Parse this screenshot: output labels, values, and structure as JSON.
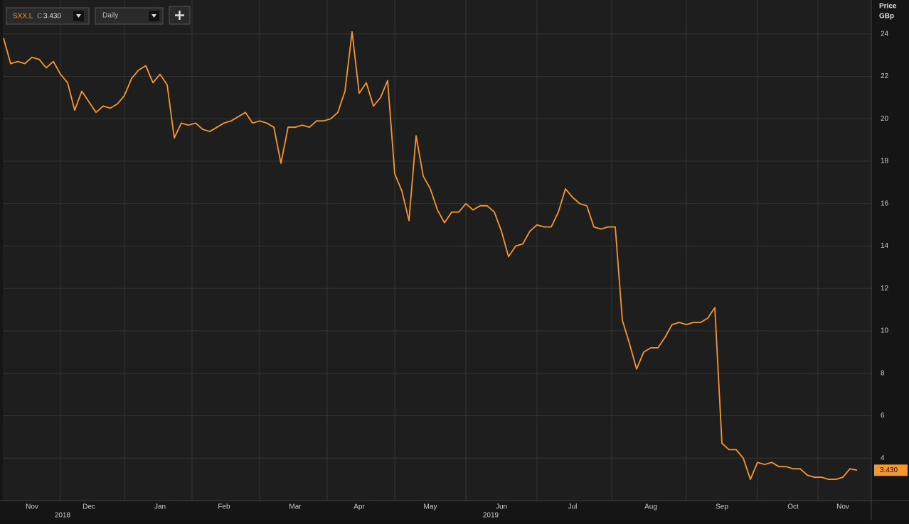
{
  "toolbar": {
    "ticker": "SXX.L",
    "close_prefix": "C",
    "close": "3.430",
    "interval": "Daily"
  },
  "chart_data": {
    "type": "line",
    "axis_title": "Price",
    "axis_unit": "GBp",
    "categories": [
      null,
      null,
      null,
      null,
      "Nov",
      null,
      null,
      null,
      null,
      null,
      null,
      null,
      "Dec",
      null,
      null,
      null,
      null,
      null,
      null,
      null,
      null,
      null,
      "Jan",
      null,
      null,
      null,
      null,
      null,
      null,
      null,
      null,
      "Feb",
      null,
      null,
      null,
      null,
      null,
      null,
      null,
      null,
      null,
      "Mar",
      null,
      null,
      null,
      null,
      null,
      null,
      null,
      null,
      "Apr",
      null,
      null,
      null,
      null,
      null,
      null,
      null,
      null,
      null,
      "May",
      null,
      null,
      null,
      null,
      null,
      null,
      null,
      null,
      null,
      "Jun",
      null,
      null,
      null,
      null,
      null,
      null,
      null,
      null,
      null,
      "Jul",
      null,
      null,
      null,
      null,
      null,
      null,
      null,
      null,
      null,
      null,
      "Aug",
      null,
      null,
      null,
      null,
      null,
      null,
      null,
      null,
      null,
      "Sep",
      null,
      null,
      null,
      null,
      null,
      null,
      null,
      null,
      null,
      "Oct",
      null,
      null,
      null,
      null,
      null,
      null,
      "Nov",
      null,
      null
    ],
    "x_groups": [
      "2018",
      "2019"
    ],
    "series": [
      {
        "name": "SXX.L",
        "color": "#f7962b",
        "values": [
          23.8,
          22.6,
          22.7,
          22.6,
          22.9,
          22.8,
          22.4,
          22.7,
          22.1,
          21.7,
          20.4,
          21.3,
          20.8,
          20.3,
          20.6,
          20.5,
          20.7,
          21.1,
          21.9,
          22.3,
          22.5,
          21.7,
          22.1,
          21.6,
          19.1,
          19.8,
          19.7,
          19.8,
          19.5,
          19.4,
          19.6,
          19.8,
          19.9,
          20.1,
          20.3,
          19.8,
          19.9,
          19.8,
          19.6,
          17.9,
          19.6,
          19.6,
          19.7,
          19.6,
          19.9,
          19.9,
          20.0,
          20.3,
          21.3,
          24.1,
          21.2,
          21.7,
          20.6,
          21.0,
          21.8,
          17.4,
          16.6,
          15.2,
          19.2,
          17.3,
          16.7,
          15.7,
          15.1,
          15.6,
          15.6,
          16.0,
          15.7,
          15.9,
          15.9,
          15.6,
          14.7,
          13.5,
          14.0,
          14.1,
          14.7,
          15.0,
          14.9,
          14.9,
          15.6,
          16.7,
          16.3,
          16.0,
          15.9,
          14.9,
          14.8,
          14.9,
          14.9,
          10.5,
          9.4,
          8.2,
          9.0,
          9.2,
          9.2,
          9.7,
          10.3,
          10.4,
          10.3,
          10.4,
          10.4,
          10.6,
          11.1,
          4.7,
          4.4,
          4.4,
          4.0,
          3.0,
          3.8,
          3.7,
          3.8,
          3.6,
          3.6,
          3.5,
          3.5,
          3.2,
          3.1,
          3.1,
          3.0,
          3.0,
          3.1,
          3.5,
          3.43
        ]
      }
    ],
    "last_label": {
      "value": 3.43,
      "label": "3.430"
    },
    "ylim": [
      2,
      25.6
    ],
    "yticks": [
      4,
      6,
      8,
      10,
      12,
      14,
      16,
      18,
      20,
      22,
      24
    ],
    "grid": true
  }
}
